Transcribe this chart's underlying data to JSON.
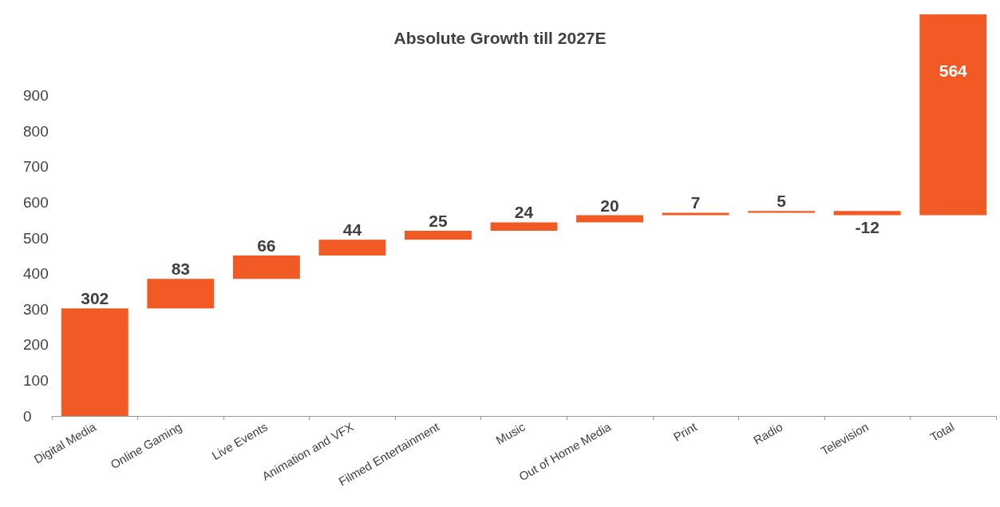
{
  "chart_data": {
    "type": "bar",
    "title": "Absolute Growth till 2027E",
    "categories": [
      "Digital Media",
      "Online Gaming",
      "Live Events",
      "Animation and VFX",
      "Filmed Entertainment",
      "Music",
      "Out of Home Media",
      "Print",
      "Radio",
      "Television",
      "Total"
    ],
    "values": [
      302,
      83,
      66,
      44,
      25,
      24,
      20,
      7,
      5,
      -12,
      564
    ],
    "base": [
      0,
      302,
      385,
      451,
      495,
      520,
      544,
      564,
      571,
      576,
      564
    ],
    "color": "#f15a24",
    "ylim": [
      0,
      1128
    ],
    "yticks": [
      0,
      100,
      200,
      300,
      400,
      500,
      600,
      700,
      800,
      900
    ],
    "grid": false,
    "data_labels": true
  }
}
